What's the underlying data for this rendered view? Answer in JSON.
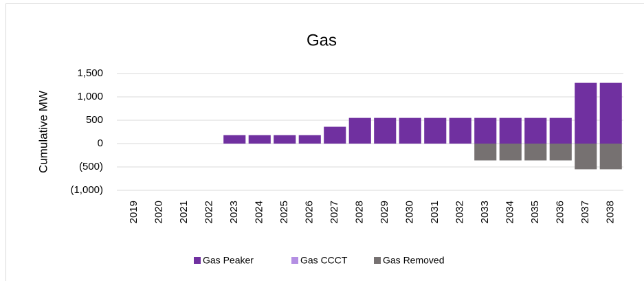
{
  "chart_data": {
    "type": "bar",
    "stacked": true,
    "title": "Gas",
    "y_label": "Cumulative MW",
    "categories": [
      "2019",
      "2020",
      "2021",
      "2022",
      "2023",
      "2024",
      "2025",
      "2026",
      "2027",
      "2028",
      "2029",
      "2030",
      "2031",
      "2032",
      "2033",
      "2034",
      "2035",
      "2036",
      "2037",
      "2038"
    ],
    "series": [
      {
        "name": "Gas Peaker",
        "color": "#7030a0",
        "values": [
          0,
          0,
          0,
          0,
          180,
          180,
          180,
          180,
          360,
          550,
          550,
          550,
          550,
          550,
          550,
          550,
          550,
          550,
          1300,
          1300
        ]
      },
      {
        "name": "Gas CCCT",
        "color": "#b48fe3",
        "values": [
          0,
          0,
          0,
          0,
          0,
          0,
          0,
          0,
          0,
          0,
          0,
          0,
          0,
          0,
          0,
          0,
          0,
          0,
          0,
          0
        ]
      },
      {
        "name": "Gas Removed",
        "color": "#767171",
        "values": [
          0,
          0,
          0,
          0,
          0,
          0,
          0,
          0,
          0,
          0,
          0,
          0,
          0,
          0,
          -360,
          -360,
          -360,
          -360,
          -550,
          -550
        ]
      }
    ],
    "ylim": [
      -1000,
      1500
    ],
    "yticks": [
      {
        "value": -1000,
        "label": "(1,000)"
      },
      {
        "value": -500,
        "label": "(500)"
      },
      0,
      500,
      {
        "value": 1000,
        "label": "1,000"
      },
      {
        "value": 1500,
        "label": "1,500"
      }
    ],
    "grid": true,
    "legend": "bottom"
  }
}
